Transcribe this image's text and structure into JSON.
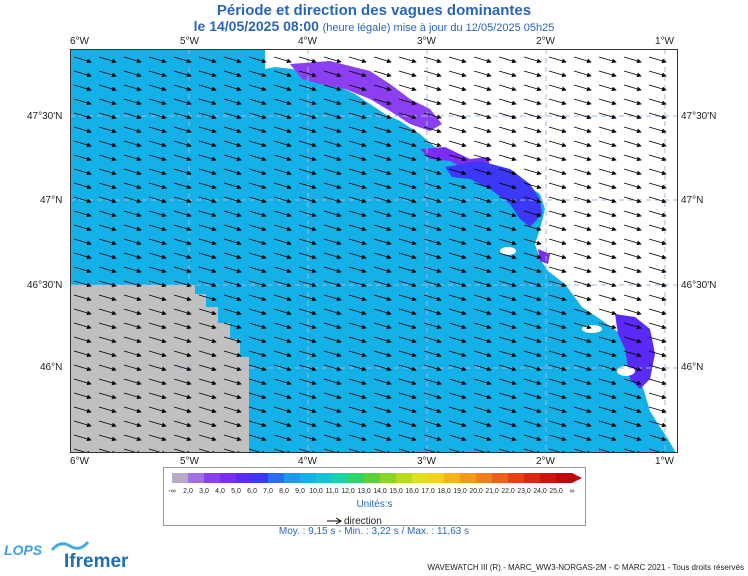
{
  "header": {
    "title": "Période et direction des vagues dominantes",
    "date": "le 14/05/2025 08:00",
    "update_note": "(heure légale) mise à jour du 12/05/2025 05h25"
  },
  "axes": {
    "top_ticks": [
      "6°W",
      "5°W",
      "4°W",
      "3°W",
      "2°W",
      "1°W"
    ],
    "bottom_ticks": [
      "6°W",
      "5°W",
      "4°W",
      "3°W",
      "2°W",
      "1°W"
    ],
    "left_ticks": [
      "47°30'N",
      "47°N",
      "46°30'N",
      "46°N"
    ],
    "right_ticks": [
      "47°30'N",
      "47°N",
      "46°30'N",
      "46°N"
    ]
  },
  "map_data": {
    "lon_range": [
      -6.0,
      -0.9
    ],
    "lat_range": [
      45.55,
      47.85
    ],
    "sea_color": "#13b1e8",
    "no_data_color": "#c0c0c0",
    "land_color": "#ffffff",
    "dominant_direction": "south-east"
  },
  "legend": {
    "labels": [
      "-∞",
      "2,0",
      "3,0",
      "4,0",
      "5,0",
      "6,0",
      "7,0",
      "8,0",
      "9,0",
      "10,0",
      "11,0",
      "12,0",
      "13,0",
      "14,0",
      "15,0",
      "16,0",
      "17,0",
      "18,0",
      "19,0",
      "20,0",
      "21,0",
      "22,0",
      "23,0",
      "24,0",
      "25,0",
      "∞"
    ],
    "colors": [
      "#b9a9c9",
      "#a070e0",
      "#8c3ff0",
      "#7a2ef5",
      "#5a2af8",
      "#3c38f8",
      "#2a6cf5",
      "#1c98ef",
      "#13b1e8",
      "#12c4d4",
      "#18d2a8",
      "#2ad66a",
      "#5ad33a",
      "#8ad624",
      "#b8dc1a",
      "#e0e020",
      "#f3d21c",
      "#f5b518",
      "#f59a16",
      "#f47e14",
      "#f06012",
      "#e84010",
      "#de280e",
      "#cf140c",
      "#c0080a"
    ],
    "unit": "Unités:s",
    "direction_label": "direction"
  },
  "stats": "Moy. : 9,15 s   -   Min. : 3,22 s / Max. : 11,63 s",
  "footer": "WAVEWATCH III (R) - MARC_WW3-NORGAS-2M - © MARC 2021 - Tous droits réservés",
  "logos": {
    "lops": "LOPS",
    "ifremer": "Ifremer"
  }
}
